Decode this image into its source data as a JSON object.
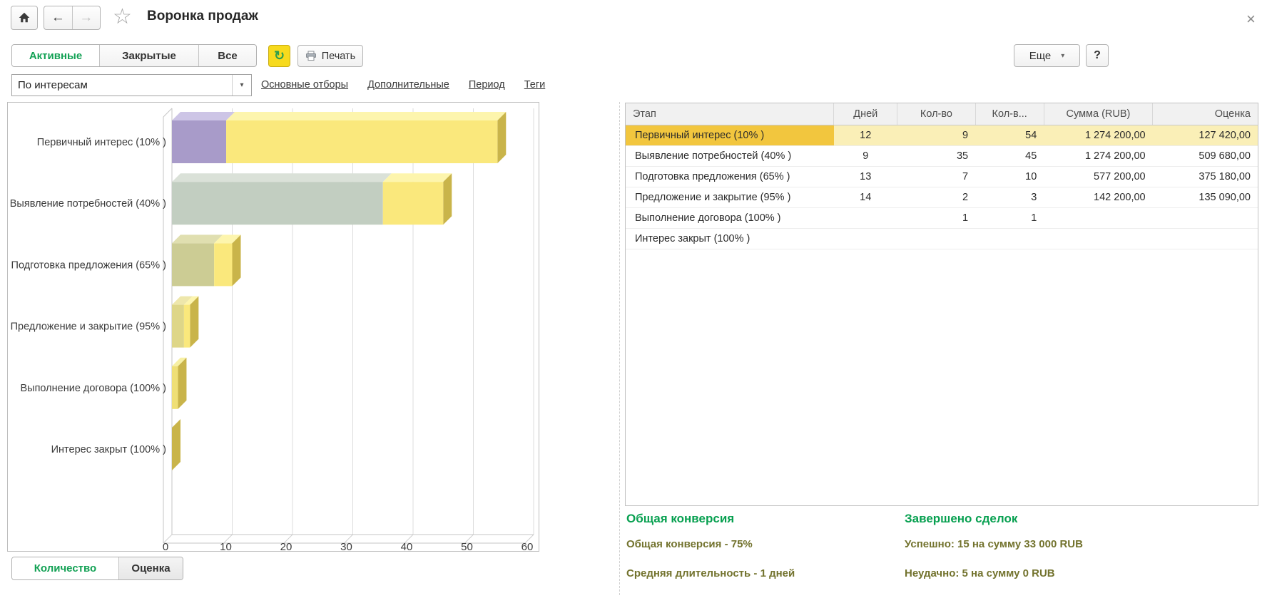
{
  "window": {
    "title": "Воронка продаж",
    "close_glyph": "×"
  },
  "icons": {
    "star": "☆",
    "refresh": "↻",
    "dropdown": "▾",
    "more_arrow": "▾",
    "back_arrow": "←",
    "forward_arrow": "→"
  },
  "toolbar": {
    "tabs": [
      {
        "label": "Активные",
        "active": true
      },
      {
        "label": "Закрытые",
        "active": false
      },
      {
        "label": "Все",
        "active": false
      }
    ],
    "print_label": "Печать",
    "more_label": "Еще",
    "help_label": "?"
  },
  "filters": {
    "combo_value": "По интересам",
    "links": [
      "Основные отборы",
      "Дополнительные",
      "Период",
      "Теги"
    ]
  },
  "chart_data": {
    "type": "bar",
    "orientation": "horizontal",
    "categories": [
      "Первичный интерес (10% )",
      "Выявление потребностей (40% )",
      "Подготовка предложения (65% )",
      "Предложение и закрытие (95% )",
      "Выполнение договора (100% )",
      "Интерес закрыт (100% )"
    ],
    "series": [
      {
        "name": "Кол-во",
        "values": [
          9,
          35,
          7,
          2,
          1,
          0
        ]
      },
      {
        "name": "Кол-во всего",
        "values": [
          54,
          45,
          10,
          3,
          1,
          0
        ]
      }
    ],
    "xlim": [
      0,
      60
    ],
    "xticks": [
      0,
      10,
      20,
      30,
      40,
      50,
      60
    ],
    "grid": true,
    "bar_colors": [
      "#a89bc9",
      "#c2cec1",
      "#cccc94",
      "#ded688",
      "#efdf76",
      "#e6d366"
    ],
    "bar_top_colors": [
      "#cdc5e6",
      "#dae1d8",
      "#e0dfb0",
      "#eee7ab",
      "#f7f0a4",
      "#f0e388"
    ],
    "overlay_color": "#fae87c",
    "overlay_top_color": "#fdf5ad",
    "edge_color": "#c9b44a"
  },
  "table": {
    "columns": [
      "Этап",
      "Дней",
      "Кол-во",
      "Кол-в...",
      "Сумма (RUB)",
      "Оценка"
    ],
    "rows": [
      [
        "Первичный интерес (10% )",
        "12",
        "9",
        "54",
        "1 274 200,00",
        "127 420,00"
      ],
      [
        "Выявление потребностей (40% )",
        "9",
        "35",
        "45",
        "1 274 200,00",
        "509 680,00"
      ],
      [
        "Подготовка предложения (65% )",
        "13",
        "7",
        "10",
        "577 200,00",
        "375 180,00"
      ],
      [
        "Предложение и закрытие (95% )",
        "14",
        "2",
        "3",
        "142 200,00",
        "135 090,00"
      ],
      [
        "Выполнение договора (100% )",
        "",
        "1",
        "1",
        "",
        ""
      ],
      [
        "Интерес закрыт (100% )",
        "",
        "",
        "",
        "",
        ""
      ]
    ],
    "selected_row_index": 0,
    "selected_colors": {
      "stage_cell": "#f2c63e",
      "row_cells": "#faefb7"
    }
  },
  "view_tabs": [
    {
      "label": "Количество",
      "active": true
    },
    {
      "label": "Оценка",
      "active": false
    }
  ],
  "summary": {
    "left": {
      "title": "Общая конверсия",
      "lines": [
        "Общая конверсия - 75%",
        "Средняя длительность - 1 дней"
      ]
    },
    "right": {
      "title": "Завершено сделок",
      "lines": [
        "Успешно: 15 на сумму 33 000 RUB",
        "Неудачно: 5 на сумму 0 RUB"
      ]
    }
  },
  "colors": {
    "accent_green": "#12a154",
    "selected_gold": "#f2c63e",
    "selected_pale": "#faefb7",
    "refresh_yellow": "#f7da1d"
  }
}
